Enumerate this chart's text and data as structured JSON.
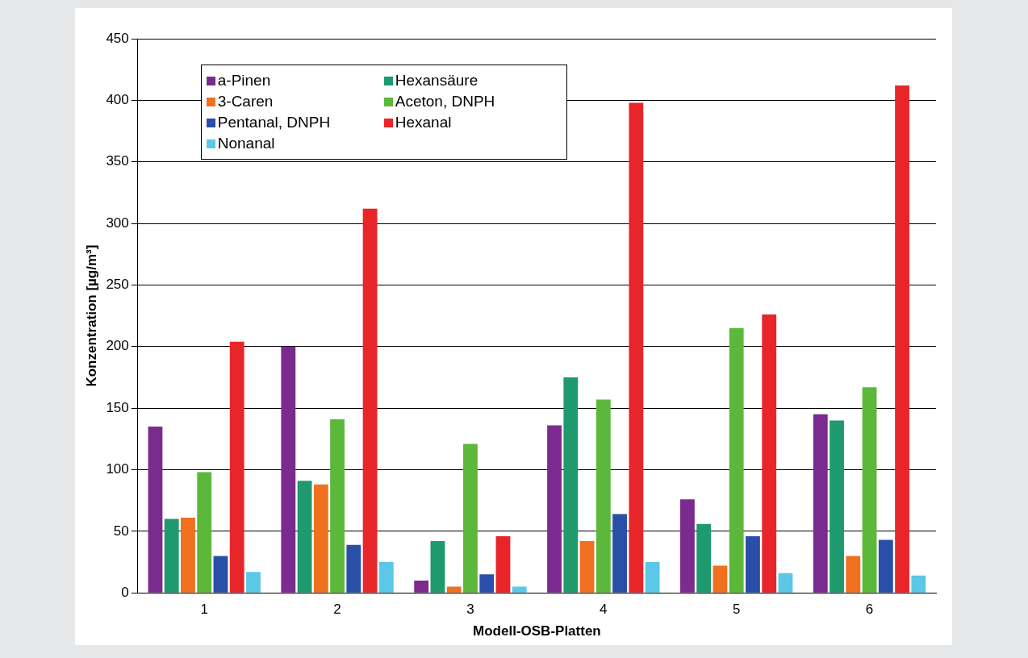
{
  "chart_data": {
    "type": "bar",
    "xlabel": "Modell-OSB-Platten",
    "ylabel": "Konzentration [µg/m³]",
    "categories": [
      "1",
      "2",
      "3",
      "4",
      "5",
      "6"
    ],
    "series": [
      {
        "name": "a-Pinen",
        "color": "#7b2a8e",
        "values": [
          135,
          200,
          10,
          136,
          76,
          145
        ]
      },
      {
        "name": "Hexansäure",
        "color": "#1e9a6e",
        "values": [
          60,
          91,
          42,
          175,
          56,
          140
        ]
      },
      {
        "name": "3-Caren",
        "color": "#f07020",
        "values": [
          61,
          88,
          5,
          42,
          22,
          30
        ]
      },
      {
        "name": "Aceton, DNPH",
        "color": "#5cb83a",
        "values": [
          98,
          141,
          121,
          157,
          215,
          167
        ]
      },
      {
        "name": "Pentanal, DNPH",
        "color": "#2a4fa8",
        "values": [
          30,
          39,
          15,
          64,
          46,
          43
        ]
      },
      {
        "name": "Hexanal",
        "color": "#e8262a",
        "values": [
          204,
          312,
          46,
          398,
          226,
          412
        ]
      },
      {
        "name": "Nonanal",
        "color": "#5bc8e8",
        "values": [
          17,
          25,
          5,
          25,
          16,
          14
        ]
      }
    ],
    "ylim": [
      0,
      450
    ],
    "yticks": [
      0,
      50,
      100,
      150,
      200,
      250,
      300,
      350,
      400,
      450
    ],
    "grid": "y",
    "legend": "top left"
  }
}
